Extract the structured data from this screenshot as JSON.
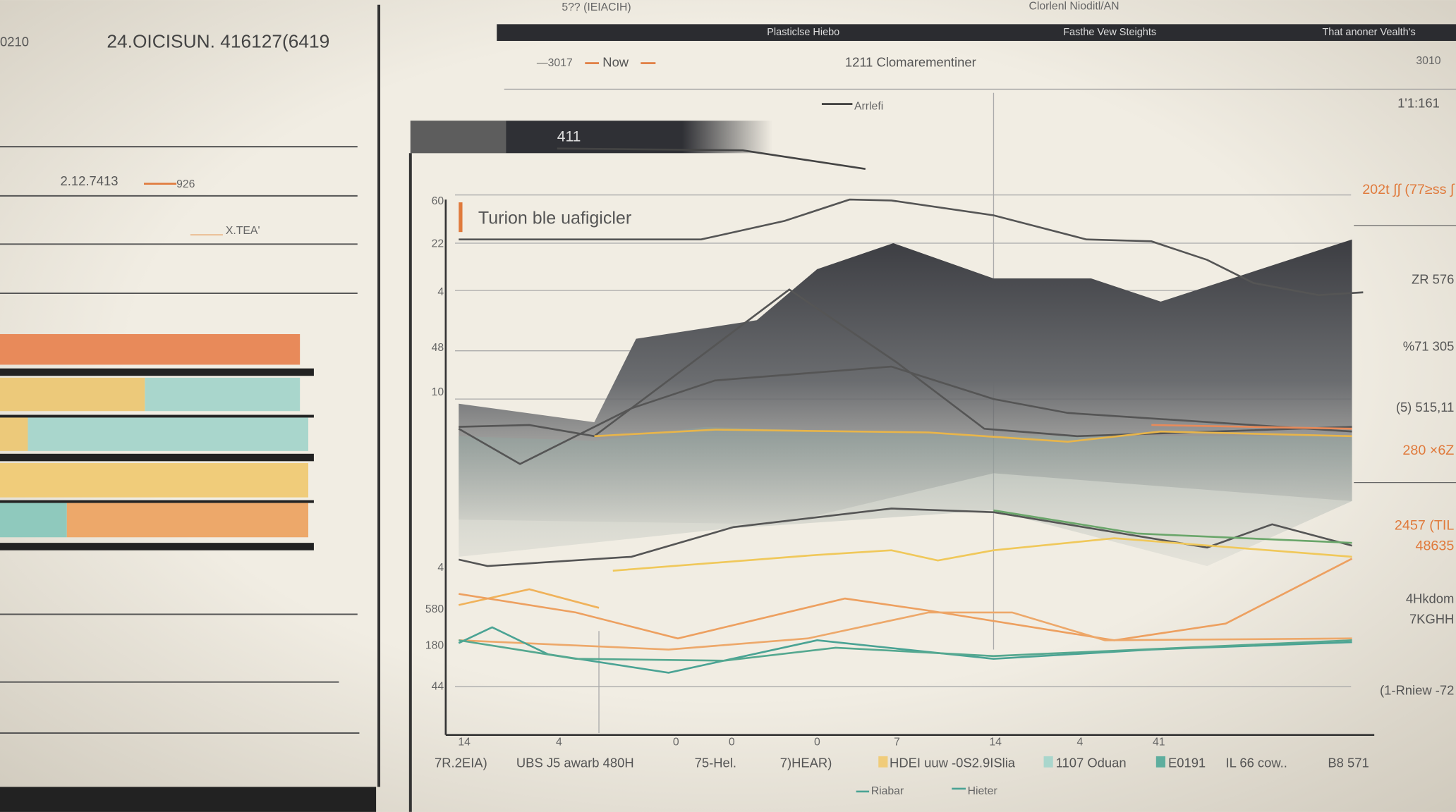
{
  "left_panel": {
    "code": "0210",
    "title": "24.OICISUN. 416127(6419",
    "date": "2.12.7413",
    "value": "926",
    "note": "X.TEA'"
  },
  "header": {
    "top_left": "5?? (IEIACIH)",
    "top_center": "Clorlenl Nioditl/AN",
    "tabs": [
      "Plasticlse Hiebo",
      "Fasthe Vew Steights",
      "That anoner Vealth's"
    ],
    "legend_a": "—3017",
    "legend_b": "Now",
    "subtitle": "1211 Clomarementiner",
    "top_right": "3010"
  },
  "chart": {
    "series_label": "Arrlefi",
    "tab": "411",
    "title": "Turion ble uafigicler",
    "y_labels": [
      "60",
      "22",
      "4",
      "48",
      "10",
      "4",
      "580",
      "180",
      "44"
    ],
    "x_labels": [
      "14",
      "4",
      "0",
      "0",
      "0",
      "7",
      "14",
      "4",
      "41"
    ],
    "legend": [
      "7R.2EIA)",
      "UBS J5 awarb 480H",
      "75-Hel.",
      "7)HEAR)",
      "HDEI uuw -0S2.9ISlia",
      "1107 Oduan",
      "E0191",
      "IL 66 cow..",
      "B8 571"
    ],
    "legend_bottom": [
      "Riabar",
      "Hieter"
    ]
  },
  "right_panel": {
    "top": "1'1:161",
    "items": [
      "202t ∫∫ (77≥ss ∫",
      "ZR 576",
      "%71 305",
      "(5) 515,11",
      "280 ×6Z",
      "2457 (TIL",
      "48635",
      "4Hkdom",
      "7KGHH",
      "(1-Rniew -72"
    ]
  }
}
